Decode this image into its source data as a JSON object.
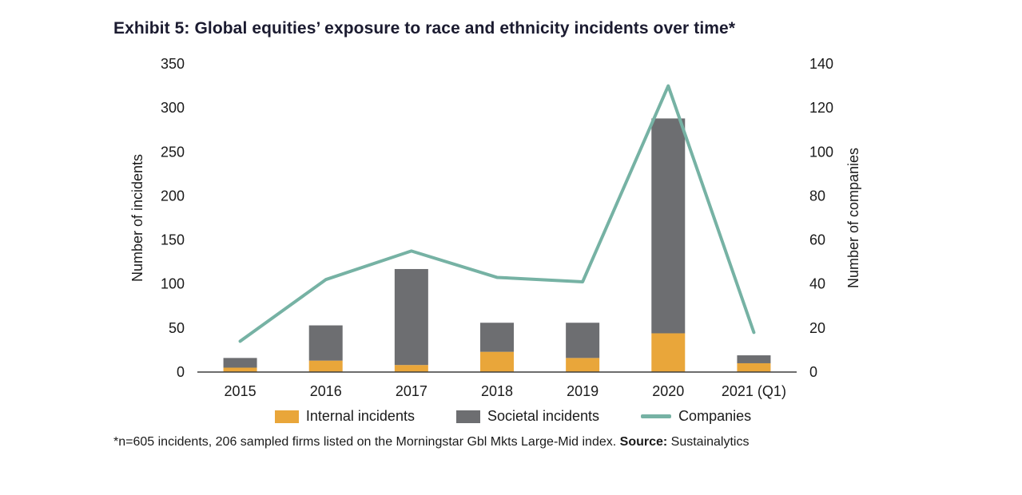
{
  "title": "Exhibit 5: Global equities’ exposure to race and ethnicity incidents over time*",
  "footnote": {
    "text": "*n=605 incidents, 206 sampled firms listed on the Morningstar Gbl Mkts Large-Mid index. ",
    "source_label": "Source:",
    "source_value": " Sustainalytics"
  },
  "chart_data": {
    "type": "combo",
    "title": "Exhibit 5: Global equities’ exposure to race and ethnicity incidents over time*",
    "categories": [
      "2015",
      "2016",
      "2017",
      "2018",
      "2019",
      "2020",
      "2021 (Q1)"
    ],
    "series": [
      {
        "name": "Internal incidents",
        "type": "bar",
        "stacked": true,
        "axis": "left",
        "color": "#E9A63A",
        "values": [
          5,
          13,
          8,
          23,
          16,
          44,
          10
        ]
      },
      {
        "name": "Societal incidents",
        "type": "bar",
        "stacked": true,
        "axis": "left",
        "color": "#6D6E71",
        "values": [
          11,
          40,
          109,
          33,
          40,
          244,
          9
        ]
      },
      {
        "name": "Companies",
        "type": "line",
        "axis": "right",
        "color": "#76B2A4",
        "values": [
          14,
          42,
          55,
          43,
          41,
          130,
          18
        ]
      }
    ],
    "stacked_totals": [
      16,
      53,
      117,
      56,
      56,
      288,
      19
    ],
    "left_axis": {
      "label": "Number of incidents",
      "min": 0,
      "max": 350,
      "step": 50
    },
    "right_axis": {
      "label": "Number of companies",
      "min": 0,
      "max": 140,
      "step": 20
    },
    "grid": false,
    "legend_position": "bottom",
    "legend": [
      "Internal incidents",
      "Societal incidents",
      "Companies"
    ]
  }
}
